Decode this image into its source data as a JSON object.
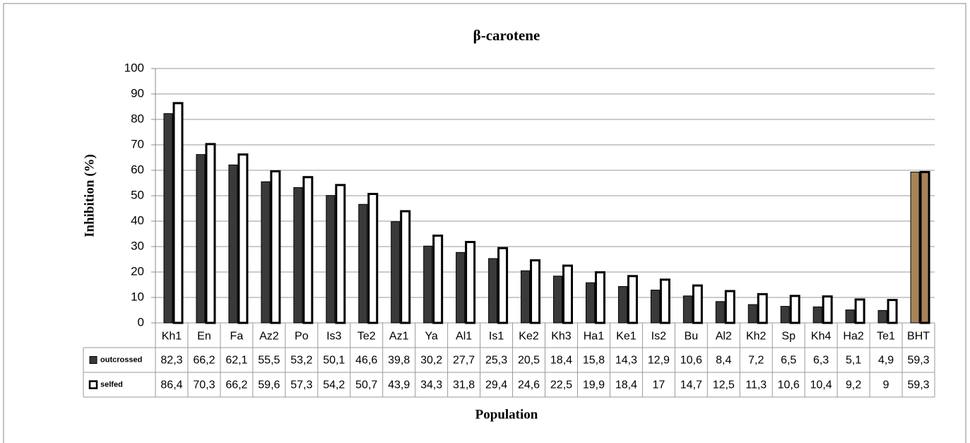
{
  "chart_data": {
    "type": "bar",
    "title": "β-carotene",
    "x_label": "Population",
    "y_label": "Inhibition (%)",
    "categories": [
      "Kh1",
      "En",
      "Fa",
      "Az2",
      "Po",
      "Is3",
      "Te2",
      "Az1",
      "Ya",
      "Al1",
      "Is1",
      "Ke2",
      "Kh3",
      "Ha1",
      "Ke1",
      "Is2",
      "Bu",
      "Al2",
      "Kh2",
      "Sp",
      "Kh4",
      "Ha2",
      "Te1",
      "BHT"
    ],
    "series": [
      {
        "name": "outcrossed",
        "color": "#3a3a3a",
        "colors": [
          "#3a3a3a",
          "#3a3a3a",
          "#3a3a3a",
          "#3a3a3a",
          "#3a3a3a",
          "#3a3a3a",
          "#3a3a3a",
          "#3a3a3a",
          "#3a3a3a",
          "#3a3a3a",
          "#3a3a3a",
          "#3a3a3a",
          "#3a3a3a",
          "#3a3a3a",
          "#3a3a3a",
          "#3a3a3a",
          "#3a3a3a",
          "#3a3a3a",
          "#3a3a3a",
          "#3a3a3a",
          "#3a3a3a",
          "#3a3a3a",
          "#3a3a3a",
          "#a8835a"
        ],
        "values": [
          82.3,
          66.2,
          62.1,
          55.5,
          53.2,
          50.1,
          46.6,
          39.8,
          30.2,
          27.7,
          25.3,
          20.5,
          18.4,
          15.8,
          14.3,
          12.9,
          10.6,
          8.4,
          7.2,
          6.5,
          6.3,
          5.1,
          4.9,
          59.3
        ],
        "value_labels": [
          "82,3",
          "66,2",
          "62,1",
          "55,5",
          "53,2",
          "50,1",
          "46,6",
          "39,8",
          "30,2",
          "27,7",
          "25,3",
          "20,5",
          "18,4",
          "15,8",
          "14,3",
          "12,9",
          "10,6",
          "8,4",
          "7,2",
          "6,5",
          "6,3",
          "5,1",
          "4,9",
          "59,3"
        ]
      },
      {
        "name": "selfed",
        "color": "#ffffff",
        "colors": [
          "#ffffff",
          "#ffffff",
          "#ffffff",
          "#ffffff",
          "#ffffff",
          "#ffffff",
          "#ffffff",
          "#ffffff",
          "#ffffff",
          "#ffffff",
          "#ffffff",
          "#ffffff",
          "#ffffff",
          "#ffffff",
          "#ffffff",
          "#ffffff",
          "#ffffff",
          "#ffffff",
          "#ffffff",
          "#ffffff",
          "#ffffff",
          "#ffffff",
          "#ffffff",
          "#a8835a"
        ],
        "values": [
          86.4,
          70.3,
          66.2,
          59.6,
          57.3,
          54.2,
          50.7,
          43.9,
          34.3,
          31.8,
          29.4,
          24.6,
          22.5,
          19.9,
          18.4,
          17,
          14.7,
          12.5,
          11.3,
          10.6,
          10.4,
          9.2,
          9,
          59.3
        ],
        "value_labels": [
          "86,4",
          "70,3",
          "66,2",
          "59,6",
          "57,3",
          "54,2",
          "50,7",
          "43,9",
          "34,3",
          "31,8",
          "29,4",
          "24,6",
          "22,5",
          "19,9",
          "18,4",
          "17",
          "14,7",
          "12,5",
          "11,3",
          "10,6",
          "10,4",
          "9,2",
          "9",
          "59,3"
        ]
      }
    ],
    "ylim": [
      0,
      100
    ],
    "yticks": [
      0,
      10,
      20,
      30,
      40,
      50,
      60,
      70,
      80,
      90,
      100
    ],
    "grid": true
  }
}
